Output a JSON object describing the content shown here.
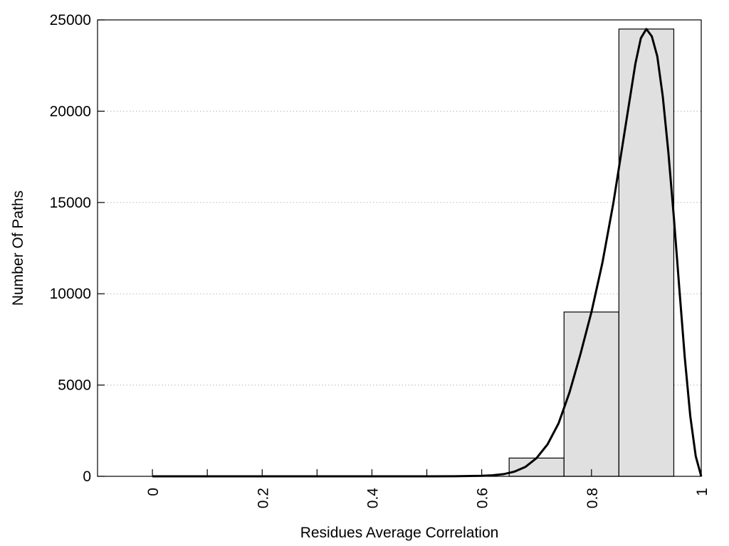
{
  "chart_data": {
    "type": "bar",
    "title": "",
    "xlabel": "Residues Average Correlation",
    "ylabel": "Number Of Paths",
    "xlim": [
      -0.1,
      1.0
    ],
    "ylim": [
      0,
      25000
    ],
    "x_ticks": [
      0,
      0.2,
      0.4,
      0.6,
      0.8,
      1
    ],
    "x_tick_labels": [
      "0",
      "0.2",
      "0.4",
      "0.6",
      "0.8",
      "1"
    ],
    "x_minor_ticks": [
      0.1,
      0.3,
      0.5
    ],
    "y_ticks": [
      0,
      5000,
      10000,
      15000,
      20000,
      25000
    ],
    "y_tick_labels": [
      "0",
      "5000",
      "10000",
      "15000",
      "20000",
      "25000"
    ],
    "grid": "horizontal dotted",
    "bar_color": "#e0e0e0",
    "bar_edge_color": "#000000",
    "bins": [
      {
        "x0": 0.65,
        "x1": 0.75,
        "value": 1000
      },
      {
        "x0": 0.75,
        "x1": 0.85,
        "value": 9000
      },
      {
        "x0": 0.85,
        "x1": 0.95,
        "value": 24500
      }
    ],
    "fit_curve": {
      "color": "#000000",
      "points": [
        [
          0,
          0
        ],
        [
          0.1,
          0
        ],
        [
          0.2,
          0
        ],
        [
          0.3,
          0
        ],
        [
          0.4,
          0
        ],
        [
          0.5,
          0
        ],
        [
          0.55,
          5
        ],
        [
          0.6,
          30
        ],
        [
          0.62,
          60
        ],
        [
          0.64,
          120
        ],
        [
          0.66,
          260
        ],
        [
          0.68,
          520
        ],
        [
          0.7,
          1000
        ],
        [
          0.72,
          1750
        ],
        [
          0.74,
          2900
        ],
        [
          0.76,
          4600
        ],
        [
          0.78,
          6700
        ],
        [
          0.8,
          9000
        ],
        [
          0.82,
          11700
        ],
        [
          0.84,
          15000
        ],
        [
          0.86,
          18800
        ],
        [
          0.88,
          22600
        ],
        [
          0.89,
          24000
        ],
        [
          0.9,
          24500
        ],
        [
          0.91,
          24100
        ],
        [
          0.92,
          23000
        ],
        [
          0.93,
          20800
        ],
        [
          0.94,
          17800
        ],
        [
          0.95,
          14200
        ],
        [
          0.96,
          10300
        ],
        [
          0.97,
          6500
        ],
        [
          0.98,
          3300
        ],
        [
          0.99,
          1100
        ],
        [
          1.0,
          0
        ]
      ]
    }
  }
}
